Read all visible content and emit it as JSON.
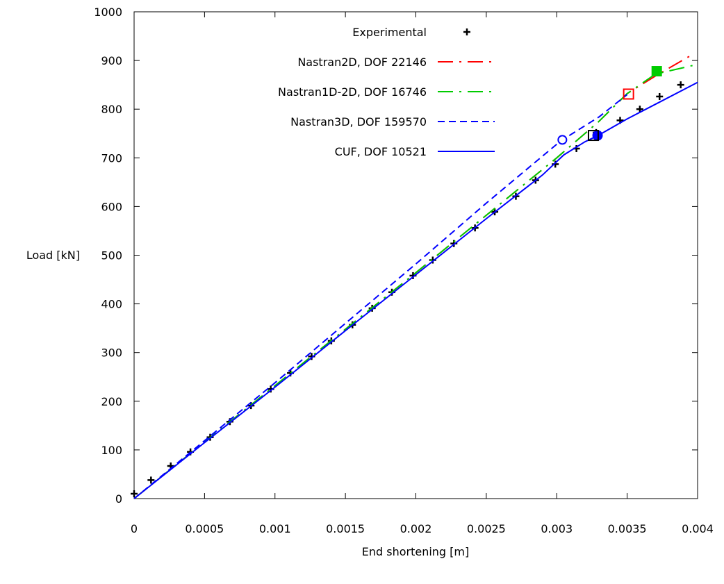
{
  "chart_data": {
    "type": "line",
    "title": "",
    "xlabel": "End shortening [m]",
    "ylabel": "Load [kN]",
    "xlim": [
      0,
      0.004
    ],
    "ylim": [
      0,
      1000
    ],
    "x_ticks": [
      "0",
      "0.0005",
      "0.001",
      "0.0015",
      "0.002",
      "0.0025",
      "0.003",
      "0.0035",
      "0.004"
    ],
    "y_ticks": [
      "0",
      "100",
      "200",
      "300",
      "400",
      "500",
      "600",
      "700",
      "800",
      "900",
      "1000"
    ],
    "grid": false,
    "legend_position": "top-right",
    "series": [
      {
        "name": "Experimental",
        "style": "points",
        "marker": "plus",
        "color": "#000000",
        "x": [
          0.0,
          0.00012,
          0.00026,
          0.0004,
          0.00054,
          0.00068,
          0.00083,
          0.00097,
          0.00111,
          0.00126,
          0.0014,
          0.00155,
          0.00169,
          0.00183,
          0.00198,
          0.00212,
          0.00227,
          0.00242,
          0.00256,
          0.00271,
          0.00285,
          0.00299,
          0.00314,
          0.00328,
          0.00345,
          0.00359,
          0.00373,
          0.00388
        ],
        "y": [
          10,
          38,
          67,
          96,
          126,
          158,
          191,
          225,
          258,
          292,
          324,
          357,
          391,
          424,
          458,
          490,
          524,
          556,
          589,
          621,
          654,
          687,
          719,
          752,
          777,
          800,
          826,
          850
        ]
      },
      {
        "name": "Nastran2D, DOF 22146",
        "style": "dash-dot",
        "color": "#ff0000",
        "x": [
          0.0,
          0.001,
          0.002,
          0.0025,
          0.003,
          0.0033,
          0.0035,
          0.0037,
          0.00395
        ],
        "y": [
          0,
          232,
          464,
          582,
          700,
          775,
          832,
          868,
          910
        ]
      },
      {
        "name": "Nastran1D-2D, DOF 16746",
        "style": "dash-dot",
        "color": "#00cc00",
        "x": [
          0.0,
          0.001,
          0.002,
          0.0025,
          0.003,
          0.0033,
          0.0035,
          0.0037,
          0.004
        ],
        "y": [
          0,
          232,
          464,
          582,
          700,
          775,
          832,
          872,
          892
        ]
      },
      {
        "name": "Nastran3D, DOF 159570",
        "style": "dashed",
        "color": "#0000ff",
        "x": [
          0.0,
          0.001,
          0.002,
          0.0025,
          0.003,
          0.00304,
          0.0033,
          0.0035
        ],
        "y": [
          0,
          238,
          482,
          607,
          728,
          737,
          784,
          830
        ]
      },
      {
        "name": "CUF, DOF 10521",
        "style": "solid",
        "color": "#0000ff",
        "x": [
          0.0,
          0.0005,
          0.001,
          0.0015,
          0.002,
          0.0025,
          0.0029,
          0.00305,
          0.0032,
          0.0033,
          0.0035,
          0.0037,
          0.004
        ],
        "y": [
          0,
          115,
          229,
          345,
          460,
          575,
          665,
          706,
          733,
          747,
          780,
          810,
          855
        ]
      }
    ],
    "annotations": [
      {
        "marker": "open-circle",
        "color": "#0000ff",
        "x": 0.00304,
        "y": 737
      },
      {
        "marker": "filled-circle",
        "color": "#0000ff",
        "x": 0.00329,
        "y": 746
      },
      {
        "marker": "open-square",
        "color": "#000000",
        "x": 0.00326,
        "y": 746
      },
      {
        "marker": "open-square",
        "color": "#ff0000",
        "x": 0.00351,
        "y": 831
      },
      {
        "marker": "filled-square",
        "color": "#00cc00",
        "x": 0.00371,
        "y": 878
      }
    ]
  }
}
